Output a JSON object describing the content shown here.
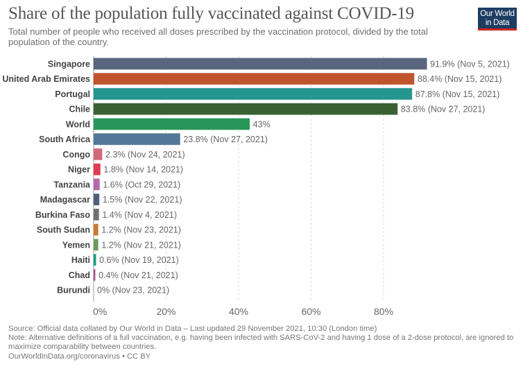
{
  "header": {
    "title": "Share of the population fully vaccinated against COVID-19",
    "subtitle": "Total number of people who received all doses prescribed by the vaccination protocol, divided by the total population of the country.",
    "logo_line1": "Our World",
    "logo_line2": "in Data"
  },
  "chart_data": {
    "type": "bar",
    "orientation": "horizontal",
    "title": "Share of the population fully vaccinated against COVID-19",
    "xlabel": "",
    "ylabel": "",
    "xlim": [
      0,
      92
    ],
    "grid": true,
    "x_ticks": [
      {
        "value": 0,
        "label": "0%"
      },
      {
        "value": 20,
        "label": "20%"
      },
      {
        "value": 40,
        "label": "40%"
      },
      {
        "value": 60,
        "label": "60%"
      },
      {
        "value": 80,
        "label": "80%"
      }
    ],
    "categories": [
      "Singapore",
      "United Arab Emirates",
      "Portugal",
      "Chile",
      "World",
      "South Africa",
      "Congo",
      "Niger",
      "Tanzania",
      "Madagascar",
      "Burkina Faso",
      "South Sudan",
      "Yemen",
      "Haiti",
      "Chad",
      "Burundi"
    ],
    "values": [
      91.9,
      88.4,
      87.8,
      83.8,
      43,
      23.8,
      2.3,
      1.8,
      1.6,
      1.5,
      1.4,
      1.2,
      1.2,
      0.6,
      0.4,
      0
    ],
    "data_labels": [
      "91.9% (Nov 5, 2021)",
      "88.4% (Nov 15, 2021)",
      "87.8% (Nov 15, 2021)",
      "83.8% (Nov 27, 2021)",
      "43%",
      "23.8% (Nov 27, 2021)",
      "2.3% (Nov 24, 2021)",
      "1.8% (Nov 14, 2021)",
      "1.6% (Oct 29, 2021)",
      "1.5% (Nov 22, 2021)",
      "1.4% (Nov 4, 2021)",
      "1.2% (Nov 23, 2021)",
      "1.2% (Nov 21, 2021)",
      "0.6% (Nov 19, 2021)",
      "0.4% (Nov 21, 2021)",
      "0% (Nov 23, 2021)"
    ],
    "colors": [
      "#58677f",
      "#c0542d",
      "#24968f",
      "#3a6132",
      "#289658",
      "#537797",
      "#cf6a7d",
      "#dc3d52",
      "#b36aac",
      "#4e5f7c",
      "#6f7178",
      "#c97a33",
      "#6f9a5e",
      "#1d9c7a",
      "#a4548a",
      "#999999"
    ]
  },
  "footer": {
    "source": "Source: Official data collated by Our World in Data – Last updated 29 November 2021, 10:30 (London time)",
    "note": "Note: Alternative definitions of a full vaccination, e.g. having been infected with SARS-CoV-2 and having 1 dose of a 2-dose protocol, are ignored to maximize comparability between countries.",
    "link": "OurWorldInData.org/coronavirus • CC BY"
  }
}
